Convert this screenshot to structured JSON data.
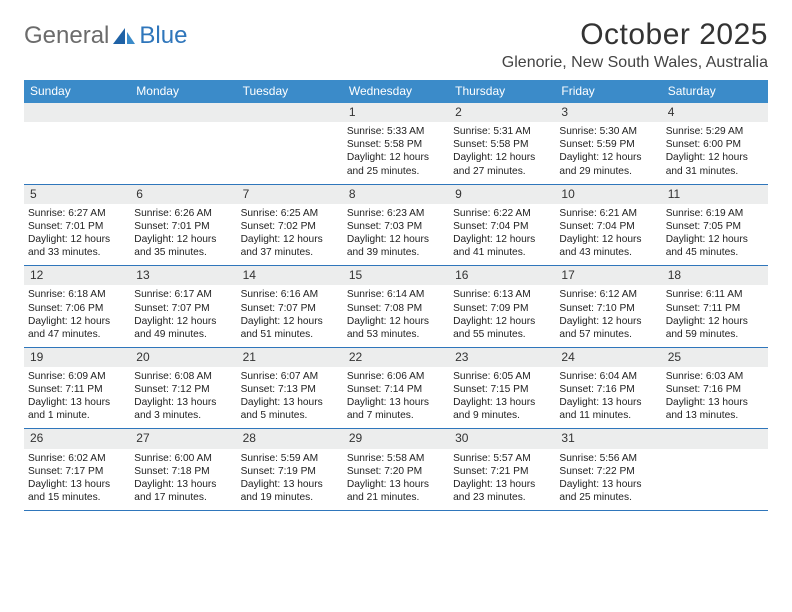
{
  "logo": {
    "text1": "General",
    "text2": "Blue"
  },
  "title": "October 2025",
  "location": "Glenorie, New South Wales, Australia",
  "colors": {
    "header_bg": "#3b8bc9",
    "accent": "#2f76bb",
    "daynum_bg": "#eceded",
    "text": "#222222",
    "title_text": "#333333"
  },
  "dow": [
    "Sunday",
    "Monday",
    "Tuesday",
    "Wednesday",
    "Thursday",
    "Friday",
    "Saturday"
  ],
  "weeks": [
    [
      null,
      null,
      null,
      {
        "n": "1",
        "sr": "5:33 AM",
        "ss": "5:58 PM",
        "dl": "12 hours and 25 minutes."
      },
      {
        "n": "2",
        "sr": "5:31 AM",
        "ss": "5:58 PM",
        "dl": "12 hours and 27 minutes."
      },
      {
        "n": "3",
        "sr": "5:30 AM",
        "ss": "5:59 PM",
        "dl": "12 hours and 29 minutes."
      },
      {
        "n": "4",
        "sr": "5:29 AM",
        "ss": "6:00 PM",
        "dl": "12 hours and 31 minutes."
      }
    ],
    [
      {
        "n": "5",
        "sr": "6:27 AM",
        "ss": "7:01 PM",
        "dl": "12 hours and 33 minutes."
      },
      {
        "n": "6",
        "sr": "6:26 AM",
        "ss": "7:01 PM",
        "dl": "12 hours and 35 minutes."
      },
      {
        "n": "7",
        "sr": "6:25 AM",
        "ss": "7:02 PM",
        "dl": "12 hours and 37 minutes."
      },
      {
        "n": "8",
        "sr": "6:23 AM",
        "ss": "7:03 PM",
        "dl": "12 hours and 39 minutes."
      },
      {
        "n": "9",
        "sr": "6:22 AM",
        "ss": "7:04 PM",
        "dl": "12 hours and 41 minutes."
      },
      {
        "n": "10",
        "sr": "6:21 AM",
        "ss": "7:04 PM",
        "dl": "12 hours and 43 minutes."
      },
      {
        "n": "11",
        "sr": "6:19 AM",
        "ss": "7:05 PM",
        "dl": "12 hours and 45 minutes."
      }
    ],
    [
      {
        "n": "12",
        "sr": "6:18 AM",
        "ss": "7:06 PM",
        "dl": "12 hours and 47 minutes."
      },
      {
        "n": "13",
        "sr": "6:17 AM",
        "ss": "7:07 PM",
        "dl": "12 hours and 49 minutes."
      },
      {
        "n": "14",
        "sr": "6:16 AM",
        "ss": "7:07 PM",
        "dl": "12 hours and 51 minutes."
      },
      {
        "n": "15",
        "sr": "6:14 AM",
        "ss": "7:08 PM",
        "dl": "12 hours and 53 minutes."
      },
      {
        "n": "16",
        "sr": "6:13 AM",
        "ss": "7:09 PM",
        "dl": "12 hours and 55 minutes."
      },
      {
        "n": "17",
        "sr": "6:12 AM",
        "ss": "7:10 PM",
        "dl": "12 hours and 57 minutes."
      },
      {
        "n": "18",
        "sr": "6:11 AM",
        "ss": "7:11 PM",
        "dl": "12 hours and 59 minutes."
      }
    ],
    [
      {
        "n": "19",
        "sr": "6:09 AM",
        "ss": "7:11 PM",
        "dl": "13 hours and 1 minute."
      },
      {
        "n": "20",
        "sr": "6:08 AM",
        "ss": "7:12 PM",
        "dl": "13 hours and 3 minutes."
      },
      {
        "n": "21",
        "sr": "6:07 AM",
        "ss": "7:13 PM",
        "dl": "13 hours and 5 minutes."
      },
      {
        "n": "22",
        "sr": "6:06 AM",
        "ss": "7:14 PM",
        "dl": "13 hours and 7 minutes."
      },
      {
        "n": "23",
        "sr": "6:05 AM",
        "ss": "7:15 PM",
        "dl": "13 hours and 9 minutes."
      },
      {
        "n": "24",
        "sr": "6:04 AM",
        "ss": "7:16 PM",
        "dl": "13 hours and 11 minutes."
      },
      {
        "n": "25",
        "sr": "6:03 AM",
        "ss": "7:16 PM",
        "dl": "13 hours and 13 minutes."
      }
    ],
    [
      {
        "n": "26",
        "sr": "6:02 AM",
        "ss": "7:17 PM",
        "dl": "13 hours and 15 minutes."
      },
      {
        "n": "27",
        "sr": "6:00 AM",
        "ss": "7:18 PM",
        "dl": "13 hours and 17 minutes."
      },
      {
        "n": "28",
        "sr": "5:59 AM",
        "ss": "7:19 PM",
        "dl": "13 hours and 19 minutes."
      },
      {
        "n": "29",
        "sr": "5:58 AM",
        "ss": "7:20 PM",
        "dl": "13 hours and 21 minutes."
      },
      {
        "n": "30",
        "sr": "5:57 AM",
        "ss": "7:21 PM",
        "dl": "13 hours and 23 minutes."
      },
      {
        "n": "31",
        "sr": "5:56 AM",
        "ss": "7:22 PM",
        "dl": "13 hours and 25 minutes."
      },
      null
    ]
  ],
  "labels": {
    "sunrise": "Sunrise:",
    "sunset": "Sunset:",
    "daylight": "Daylight:"
  }
}
